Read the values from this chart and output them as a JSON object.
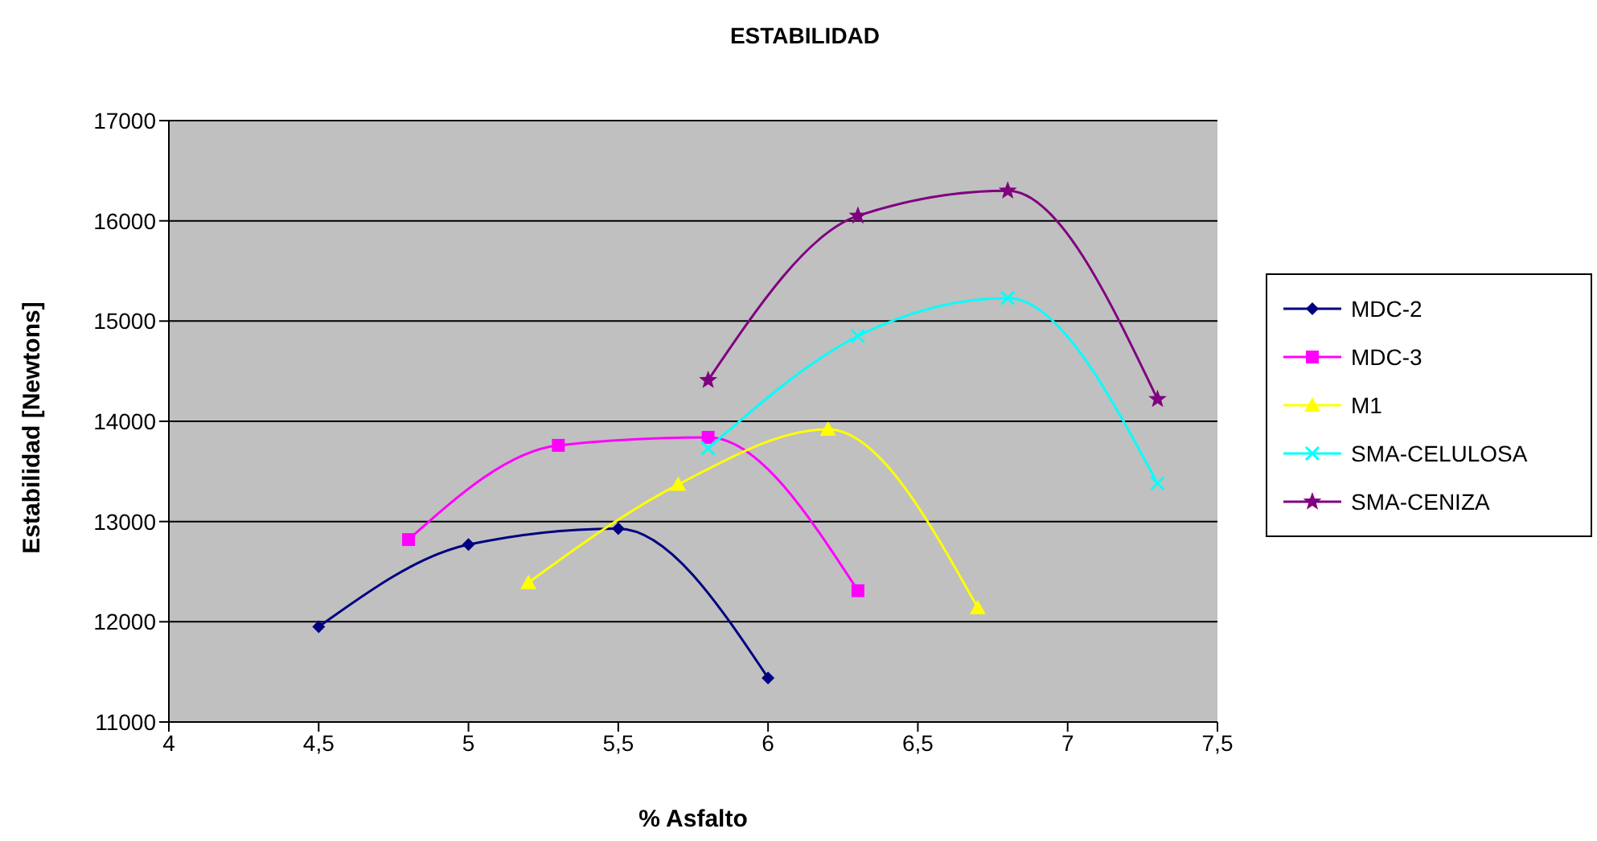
{
  "chart_data": {
    "type": "line",
    "title": "ESTABILIDAD",
    "xlabel": "% Asfalto",
    "ylabel": "Estabilidad [Newtons]",
    "xlim": [
      4,
      7.5
    ],
    "xticks": [
      4,
      {
        "value": 4.5,
        "label": "4,5"
      },
      5,
      {
        "value": 5.5,
        "label": "5,5"
      },
      6,
      {
        "value": 6.5,
        "label": "6,5"
      },
      7,
      {
        "value": 7.5,
        "label": "7,5"
      }
    ],
    "ylim": [
      11000,
      17000
    ],
    "yticks": [
      11000,
      12000,
      13000,
      14000,
      15000,
      16000,
      17000
    ],
    "grid": "y",
    "legend": "right",
    "line_style": "solid",
    "series": [
      {
        "name": "MDC-2",
        "color": "#000080",
        "marker": "diamond",
        "x": [
          4.5,
          5,
          5.5,
          6
        ],
        "values": [
          11950,
          12770,
          12930,
          11440
        ]
      },
      {
        "name": "MDC-3",
        "color": "#ff00ff",
        "marker": "square",
        "x": [
          4.8,
          5.3,
          5.8,
          6.3
        ],
        "values": [
          12820,
          13760,
          13840,
          12310
        ]
      },
      {
        "name": "M1",
        "color": "#ffff00",
        "marker": "triangle",
        "x": [
          5.2,
          5.7,
          6.2,
          6.7
        ],
        "values": [
          12390,
          13370,
          13920,
          12140
        ]
      },
      {
        "name": "SMA-CELULOSA",
        "color": "#00ffff",
        "marker": "cross",
        "x": [
          5.8,
          6.3,
          6.8,
          7.3
        ],
        "values": [
          13730,
          14850,
          15230,
          13380
        ]
      },
      {
        "name": "SMA-CENIZA",
        "color": "#800080",
        "marker": "star",
        "x": [
          5.8,
          6.3,
          6.8,
          7.3
        ],
        "values": [
          14410,
          16050,
          16300,
          14220
        ]
      }
    ]
  }
}
